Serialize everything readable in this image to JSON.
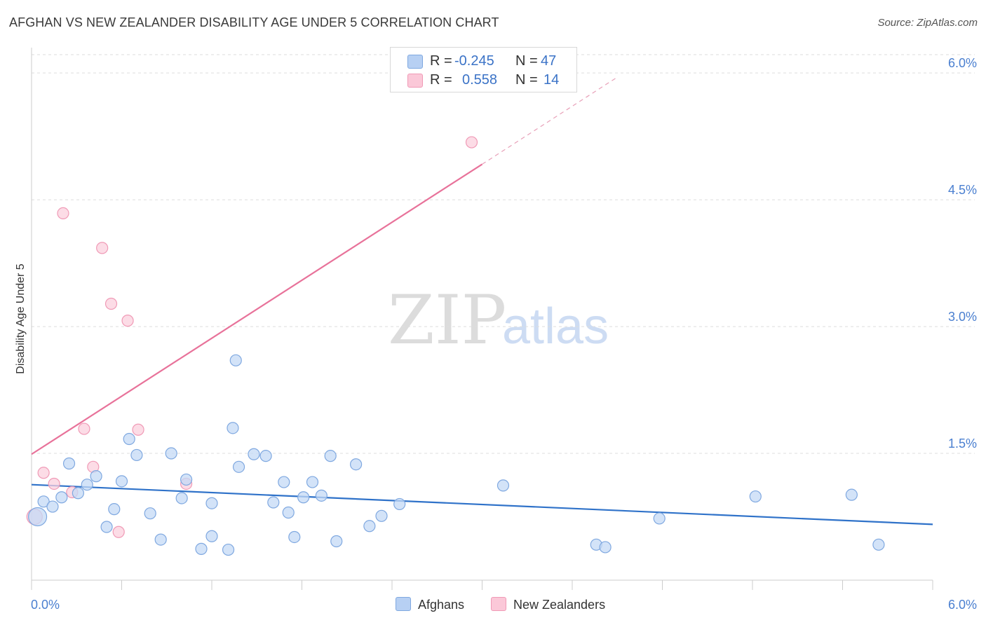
{
  "title": "AFGHAN VS NEW ZEALANDER DISABILITY AGE UNDER 5 CORRELATION CHART",
  "source": "Source: ZipAtlas.com",
  "watermark": {
    "part1": "ZIP",
    "part2": "atlas"
  },
  "legend_top": [
    {
      "r_label": "R =",
      "r_value": "-0.245",
      "n_label": "N =",
      "n_value": "47",
      "color": "#b7d0f3",
      "border": "#7fa8e0"
    },
    {
      "r_label": "R =",
      "r_value": "0.558",
      "n_label": "N =",
      "n_value": "14",
      "color": "#fbc8d8",
      "border": "#f09ab6"
    }
  ],
  "legend_bottom": [
    {
      "label": "Afghans",
      "color": "#b7d0f3",
      "border": "#7fa8e0"
    },
    {
      "label": "New Zealanders",
      "color": "#fbc8d8",
      "border": "#f09ab6"
    }
  ],
  "chart_data": {
    "type": "scatter",
    "title": "AFGHAN VS NEW ZEALANDER DISABILITY AGE UNDER 5 CORRELATION CHART",
    "xlabel": "",
    "ylabel": "Disability Age Under 5",
    "xlim": [
      0,
      6.0
    ],
    "ylim": [
      0,
      6.2
    ],
    "x_tick_labels": [
      "0.0%",
      "6.0%"
    ],
    "y_tick_values": [
      1.5,
      3.0,
      4.5,
      6.0
    ],
    "y_tick_labels": [
      "1.5%",
      "3.0%",
      "4.5%",
      "6.0%"
    ],
    "grid": true,
    "series": [
      {
        "name": "Afghans",
        "color": "#7fa8e0",
        "fill": "#c4d9f5",
        "x": [
          0.04,
          0.08,
          0.14,
          0.2,
          0.25,
          0.31,
          0.37,
          0.43,
          0.5,
          0.55,
          0.6,
          0.65,
          0.7,
          0.79,
          0.86,
          0.93,
          1.0,
          1.03,
          1.13,
          1.2,
          1.2,
          1.31,
          1.34,
          1.36,
          1.38,
          1.48,
          1.56,
          1.61,
          1.68,
          1.71,
          1.75,
          1.81,
          1.87,
          1.93,
          1.99,
          2.03,
          2.16,
          2.25,
          2.33,
          2.45,
          3.14,
          3.76,
          3.82,
          4.18,
          4.82,
          5.46,
          5.64
        ],
        "y": [
          0.75,
          0.93,
          0.87,
          0.98,
          1.38,
          1.03,
          1.13,
          1.23,
          0.63,
          0.84,
          1.17,
          1.67,
          1.48,
          0.79,
          0.48,
          1.5,
          0.97,
          1.19,
          0.37,
          0.52,
          0.91,
          0.36,
          1.8,
          2.6,
          1.34,
          1.49,
          1.47,
          0.92,
          1.16,
          0.8,
          0.51,
          0.98,
          1.16,
          1.0,
          1.47,
          0.46,
          1.37,
          0.64,
          0.76,
          0.9,
          1.12,
          0.42,
          0.39,
          0.73,
          0.99,
          1.01,
          0.42
        ]
      },
      {
        "name": "New Zealanders",
        "color": "#f09ab6",
        "fill": "#fbd0de",
        "x": [
          0.02,
          0.08,
          0.15,
          0.21,
          0.27,
          0.35,
          0.41,
          0.47,
          0.53,
          0.58,
          0.64,
          0.71,
          1.03,
          2.93
        ],
        "y": [
          0.75,
          1.27,
          1.14,
          4.34,
          1.04,
          1.79,
          1.34,
          3.93,
          3.27,
          0.57,
          3.07,
          1.78,
          1.14,
          5.18
        ]
      }
    ],
    "trendlines": [
      {
        "series": "Afghans",
        "x": [
          0,
          6.0
        ],
        "y": [
          1.13,
          0.66
        ],
        "style": "solid"
      },
      {
        "series": "New Zealanders",
        "x": [
          0,
          3.0
        ],
        "y": [
          1.49,
          4.92
        ],
        "style": "solid",
        "extended_x": [
          3.0,
          3.9
        ],
        "extended_y": [
          4.92,
          5.95
        ]
      }
    ]
  }
}
